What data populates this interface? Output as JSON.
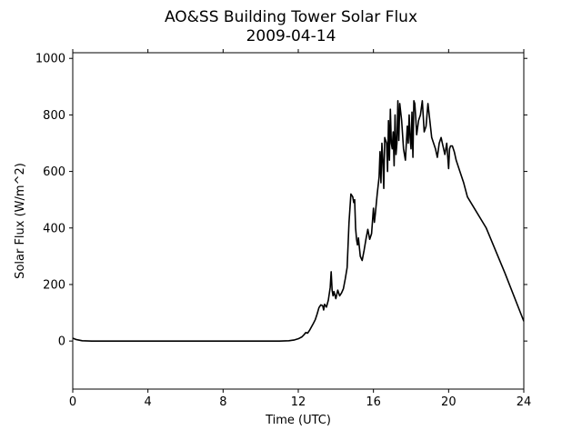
{
  "chart_data": {
    "type": "line",
    "title": "AO&SS Building Tower Solar Flux",
    "subtitle": "2009-04-14",
    "xlabel": "Time (UTC)",
    "ylabel": "Solar Flux (W/m^2)",
    "xlim": [
      0,
      24
    ],
    "ylim": [
      -170,
      1020
    ],
    "xticks": [
      0,
      4,
      8,
      12,
      16,
      20,
      24
    ],
    "yticks": [
      0,
      200,
      400,
      600,
      800,
      1000
    ],
    "grid": false,
    "line_color": "#000000",
    "series": [
      {
        "x": [
          0,
          0.2,
          0.5,
          1,
          2,
          4,
          6,
          8,
          10,
          11,
          11.5,
          11.8,
          12,
          12.2,
          12.3,
          12.4,
          12.5,
          12.6,
          12.7,
          12.8,
          12.9,
          13.0,
          13.1,
          13.2,
          13.3,
          13.35,
          13.4,
          13.5,
          13.6,
          13.7,
          13.75,
          13.8,
          13.85,
          13.9,
          14.0,
          14.1,
          14.2,
          14.3,
          14.4,
          14.5,
          14.6,
          14.7,
          14.8,
          14.9,
          14.95,
          15.0,
          15.05,
          15.1,
          15.15,
          15.2,
          15.3,
          15.4,
          15.5,
          15.6,
          15.7,
          15.8,
          15.9,
          16.0,
          16.05,
          16.1,
          16.2,
          16.3,
          16.35,
          16.4,
          16.45,
          16.5,
          16.55,
          16.6,
          16.7,
          16.75,
          16.8,
          16.85,
          16.9,
          16.95,
          17.0,
          17.05,
          17.1,
          17.15,
          17.2,
          17.25,
          17.3,
          17.35,
          17.4,
          17.5,
          17.6,
          17.7,
          17.8,
          17.85,
          17.9,
          17.95,
          18.0,
          18.05,
          18.1,
          18.15,
          18.2,
          18.25,
          18.3,
          18.4,
          18.5,
          18.6,
          18.7,
          18.8,
          18.9,
          19.0,
          19.1,
          19.2,
          19.3,
          19.4,
          19.5,
          19.6,
          19.7,
          19.8,
          19.9,
          20.0,
          20.05,
          20.1,
          20.2,
          20.3,
          20.4,
          20.6,
          20.8,
          21.0,
          22.0,
          23.0,
          24.0
        ],
        "values": [
          10,
          5,
          1,
          0,
          0,
          0,
          0,
          0,
          0,
          0,
          1,
          4,
          8,
          15,
          22,
          30,
          28,
          38,
          50,
          62,
          75,
          95,
          118,
          128,
          125,
          110,
          130,
          120,
          145,
          190,
          245,
          180,
          160,
          175,
          150,
          180,
          160,
          170,
          185,
          220,
          260,
          420,
          520,
          510,
          490,
          500,
          400,
          360,
          340,
          365,
          300,
          285,
          320,
          360,
          395,
          360,
          380,
          470,
          420,
          450,
          520,
          580,
          670,
          560,
          700,
          640,
          540,
          720,
          700,
          600,
          780,
          640,
          820,
          700,
          680,
          740,
          620,
          800,
          660,
          700,
          850,
          710,
          840,
          780,
          680,
          640,
          760,
          700,
          800,
          720,
          680,
          810,
          650,
          850,
          840,
          790,
          730,
          780,
          800,
          850,
          740,
          760,
          840,
          780,
          720,
          700,
          680,
          650,
          700,
          720,
          690,
          660,
          700,
          610,
          680,
          690,
          690,
          670,
          640,
          600,
          560,
          510,
          400,
          240,
          70
        ]
      }
    ]
  }
}
